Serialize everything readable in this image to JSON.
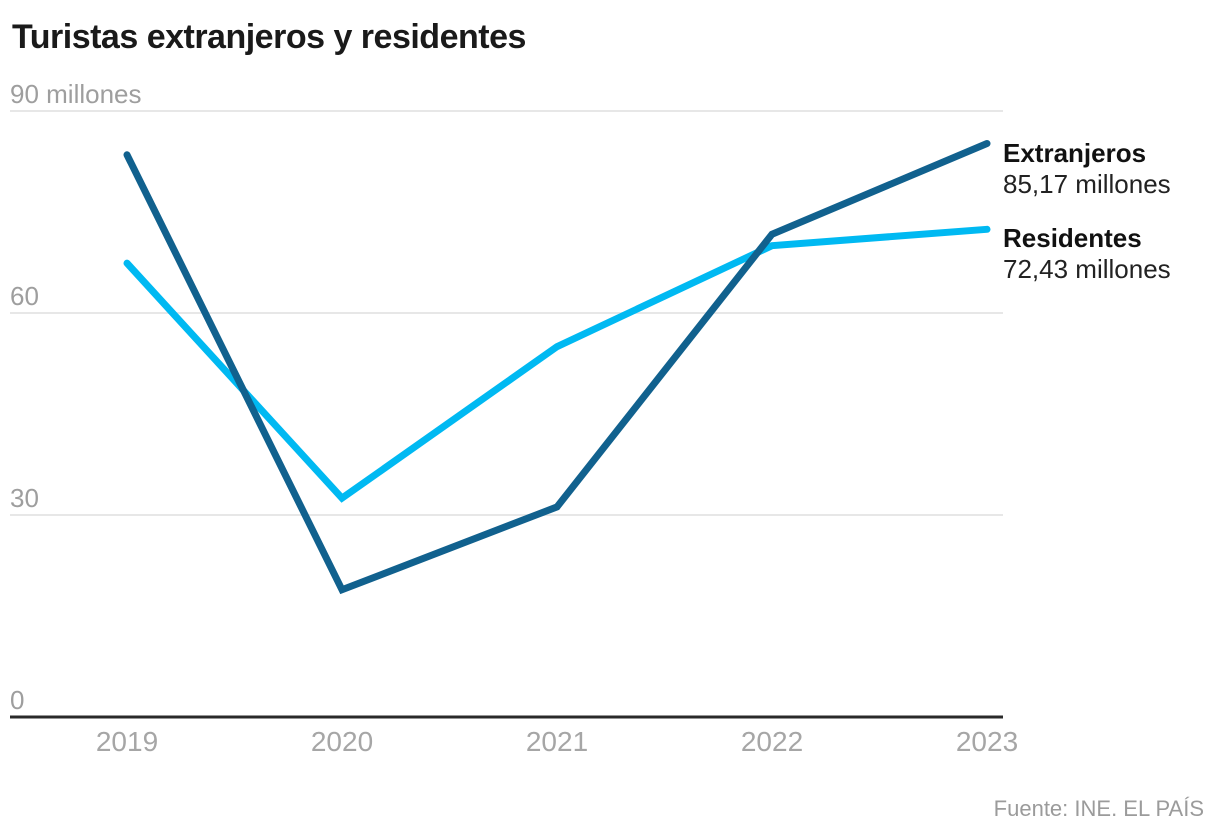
{
  "chart": {
    "title": "Turistas extranjeros y residentes",
    "source": "Fuente: INE. EL PAÍS"
  },
  "chart_data": {
    "type": "line",
    "title": "Turistas extranjeros y residentes",
    "x": [
      2019,
      2020,
      2021,
      2022,
      2023
    ],
    "xticks": [
      "2019",
      "2020",
      "2021",
      "2022",
      "2023"
    ],
    "series": [
      {
        "name": "Extranjeros",
        "values": [
          83.5,
          18.9,
          31.2,
          71.7,
          85.17
        ],
        "value_label": "85,17 millones",
        "color": "#11618e"
      },
      {
        "name": "Residentes",
        "values": [
          67.4,
          32.5,
          55.0,
          70.0,
          72.43
        ],
        "value_label": "72,43 millones",
        "color": "#00b9f2"
      }
    ],
    "ylim": [
      0,
      90
    ],
    "yticks": [
      {
        "value": 90,
        "label": "90 millones"
      },
      {
        "value": 60,
        "label": "60"
      },
      {
        "value": 30,
        "label": "30"
      },
      {
        "value": 0,
        "label": "0"
      }
    ],
    "grid": true,
    "legend_position": "right-end-labels",
    "axis_color": "#2a2a2a",
    "grid_color": "#e7e7e7"
  }
}
